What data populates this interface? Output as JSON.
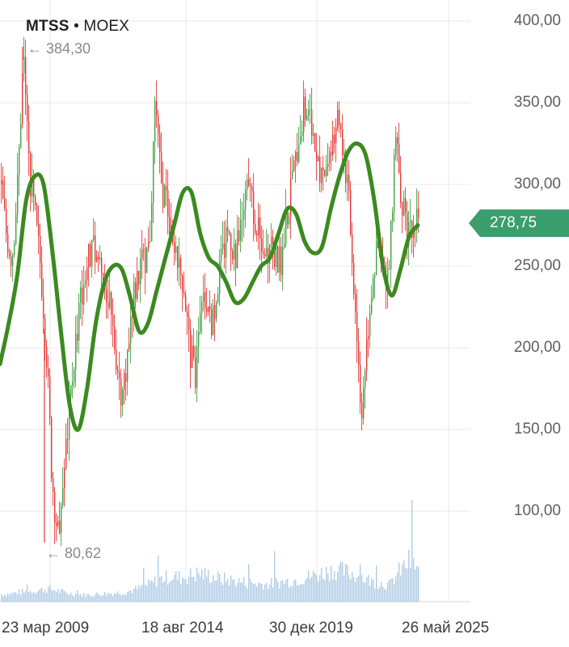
{
  "header": {
    "ticker": "MTSS",
    "separator": "•",
    "exchange": "MOEX"
  },
  "current_price": {
    "label": "278,75",
    "value": 278.75,
    "color": "#3a9e6d"
  },
  "colors": {
    "candle_down": "#e53935",
    "candle_up": "#43a047",
    "moving_average": "#3b8a1f",
    "volume": "#9cc0e0",
    "grid": "#e8e8e8"
  },
  "chart_data": {
    "type": "candlestick",
    "title": "",
    "x_ticks": [
      "23 мар 2009",
      "18 авг 2014",
      "30 дек 2019",
      "26 май 2025"
    ],
    "y_ticks": [
      "400,00",
      "350,00",
      "300,00",
      "250,00",
      "200,00",
      "150,00",
      "100,00"
    ],
    "y_tick_values": [
      400,
      350,
      300,
      250,
      200,
      150,
      100
    ],
    "ylim": [
      50,
      400
    ],
    "annotations": [
      {
        "label": "384,30",
        "value": 384.3,
        "type": "max"
      },
      {
        "label": "80,62",
        "value": 80.62,
        "type": "min"
      }
    ],
    "moving_average": {
      "values": [
        190,
        215,
        245,
        290,
        305,
        300,
        260,
        210,
        165,
        150,
        175,
        215,
        240,
        250,
        248,
        230,
        210,
        215,
        235,
        255,
        275,
        295,
        295,
        270,
        255,
        250,
        240,
        228,
        230,
        240,
        250,
        255,
        270,
        285,
        282,
        265,
        258,
        262,
        285,
        305,
        320,
        325,
        318,
        290,
        250,
        232,
        248,
        268,
        275
      ]
    },
    "price_path": [
      300,
      270,
      255,
      300,
      380,
      310,
      280,
      250,
      200,
      120,
      85,
      120,
      160,
      200,
      230,
      250,
      260,
      255,
      245,
      225,
      200,
      175,
      190,
      230,
      240,
      255,
      260,
      350,
      300,
      290,
      260,
      250,
      240,
      200,
      180,
      220,
      230,
      215,
      240,
      260,
      270,
      255,
      275,
      295,
      290,
      270,
      250,
      265,
      255,
      250,
      280,
      300,
      330,
      345,
      340,
      320,
      300,
      315,
      330,
      340,
      320,
      280,
      225,
      160,
      205,
      245,
      260,
      240,
      250,
      335,
      295,
      265,
      270,
      278.75
    ],
    "volume": [
      1,
      1.1,
      1.3,
      1.4,
      1.6,
      1.8,
      1.5,
      1.2,
      1,
      0.9,
      1,
      1.1,
      1.2,
      1.3,
      1.6,
      2,
      2.6,
      3.2,
      3.5,
      3.3,
      3.6,
      3.9,
      3.6,
      3.2,
      3,
      2.8,
      2.6,
      2.5,
      2.4,
      2.6,
      2.8,
      3,
      3.3,
      3.6,
      4,
      4.4,
      4.2,
      3.9,
      3.4,
      2.8,
      2.5,
      2.3,
      4.2,
      5.5,
      4.6
    ]
  }
}
